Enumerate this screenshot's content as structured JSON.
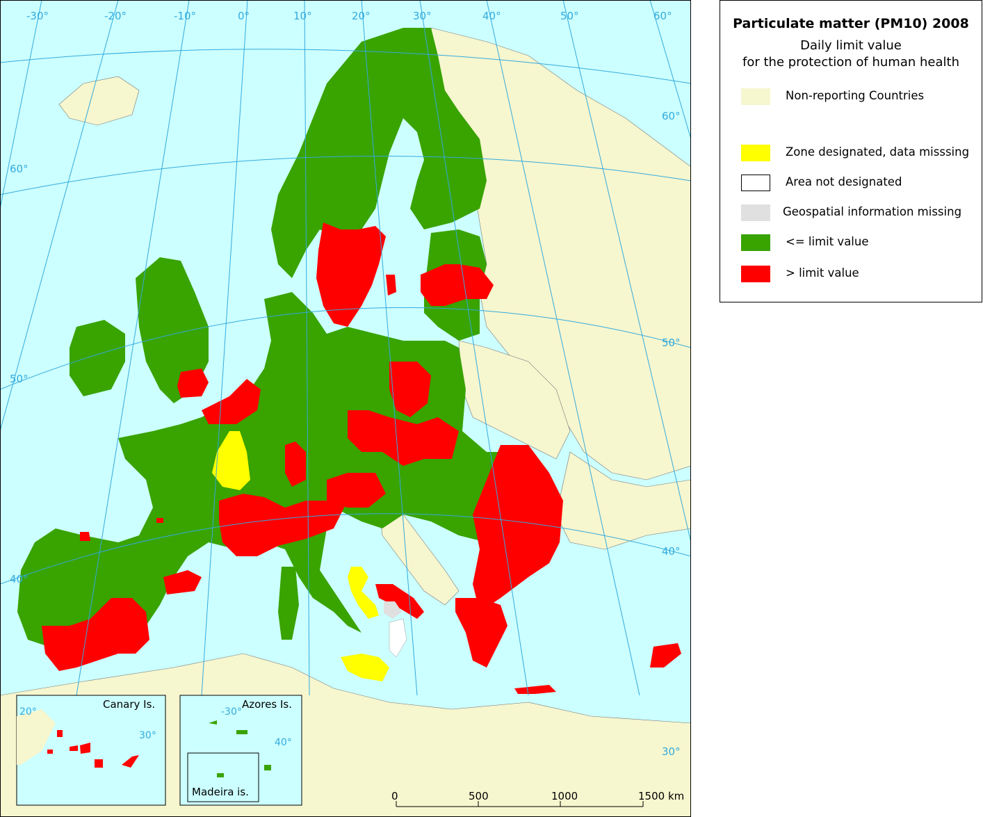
{
  "legend": {
    "title": "Particulate matter (PM10)  2008",
    "subtitle_1": "Daily limit value",
    "subtitle_2": "for the protection of human health",
    "items": [
      {
        "label": "Non-reporting Countries",
        "color": "#f6f6cf"
      },
      {
        "label": "Zone designated, data misssing",
        "color": "#ffff00"
      },
      {
        "label": "Area not designated",
        "color": "#ffffff"
      },
      {
        "label": "Geospatial information missing",
        "color": "#e0e0e0"
      },
      {
        "label": "<= limit value",
        "color": "#39a300"
      },
      {
        "label": "> limit value",
        "color": "#ff0000"
      }
    ]
  },
  "map": {
    "sea_color": "#ccffff",
    "graticule_color": "#33aadd",
    "longitude_labels": [
      "-30°",
      "-20°",
      "-10°",
      "0°",
      "10°",
      "20°",
      "30°",
      "40°",
      "50°",
      "60°"
    ],
    "latitude_labels": [
      "60°",
      "50°",
      "40°",
      "60°",
      "50°",
      "40°",
      "30°"
    ],
    "inset_canary": {
      "title": "Canary Is.",
      "labels": [
        "20°",
        "30°"
      ]
    },
    "inset_azores": {
      "title": "Azores Is.",
      "labels": [
        "-30°",
        "40°"
      ]
    },
    "inset_madeira": {
      "title": "Madeira is."
    },
    "scale_bar": {
      "ticks": [
        "0",
        "500",
        "1000",
        "1500 km"
      ]
    }
  }
}
